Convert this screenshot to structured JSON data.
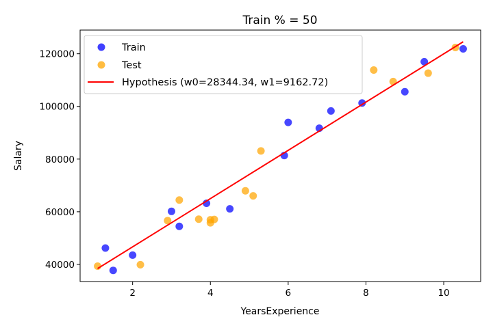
{
  "chart_data": {
    "type": "scatter",
    "title": "Train % = 50",
    "xlabel": "YearsExperience",
    "ylabel": "Salary",
    "xlim": [
      0.65,
      10.95
    ],
    "ylim": [
      33500,
      129000
    ],
    "xticks": [
      2,
      4,
      6,
      8,
      10
    ],
    "yticks": [
      40000,
      60000,
      80000,
      100000,
      120000
    ],
    "grid": false,
    "legend_position": "top-left",
    "series": [
      {
        "name": "Train",
        "kind": "scatter",
        "color": "#0000ff",
        "points": [
          {
            "x": 1.3,
            "y": 46205
          },
          {
            "x": 1.5,
            "y": 37731
          },
          {
            "x": 2.0,
            "y": 43525
          },
          {
            "x": 3.0,
            "y": 60150
          },
          {
            "x": 3.2,
            "y": 54445
          },
          {
            "x": 3.9,
            "y": 63218
          },
          {
            "x": 4.5,
            "y": 61111
          },
          {
            "x": 5.9,
            "y": 81363
          },
          {
            "x": 6.0,
            "y": 93940
          },
          {
            "x": 6.8,
            "y": 91738
          },
          {
            "x": 7.1,
            "y": 98273
          },
          {
            "x": 7.9,
            "y": 101302
          },
          {
            "x": 9.0,
            "y": 105582
          },
          {
            "x": 9.5,
            "y": 116969
          },
          {
            "x": 10.5,
            "y": 121872
          }
        ]
      },
      {
        "name": "Test",
        "kind": "scatter",
        "color": "#ffa500",
        "points": [
          {
            "x": 1.1,
            "y": 39343
          },
          {
            "x": 2.2,
            "y": 39891
          },
          {
            "x": 2.9,
            "y": 56642
          },
          {
            "x": 3.2,
            "y": 64445
          },
          {
            "x": 3.7,
            "y": 57189
          },
          {
            "x": 4.0,
            "y": 55794
          },
          {
            "x": 4.0,
            "y": 56957
          },
          {
            "x": 4.1,
            "y": 57081
          },
          {
            "x": 4.9,
            "y": 67938
          },
          {
            "x": 5.1,
            "y": 66029
          },
          {
            "x": 5.3,
            "y": 83088
          },
          {
            "x": 8.2,
            "y": 113812
          },
          {
            "x": 8.7,
            "y": 109431
          },
          {
            "x": 9.6,
            "y": 112635
          },
          {
            "x": 10.3,
            "y": 122391
          }
        ]
      },
      {
        "name": "Hypothesis (w0=28344.34, w1=9162.72)",
        "kind": "line",
        "color": "#ff0000",
        "w0": 28344.34,
        "w1": 9162.72,
        "x_range": [
          1.1,
          10.5
        ]
      }
    ]
  }
}
